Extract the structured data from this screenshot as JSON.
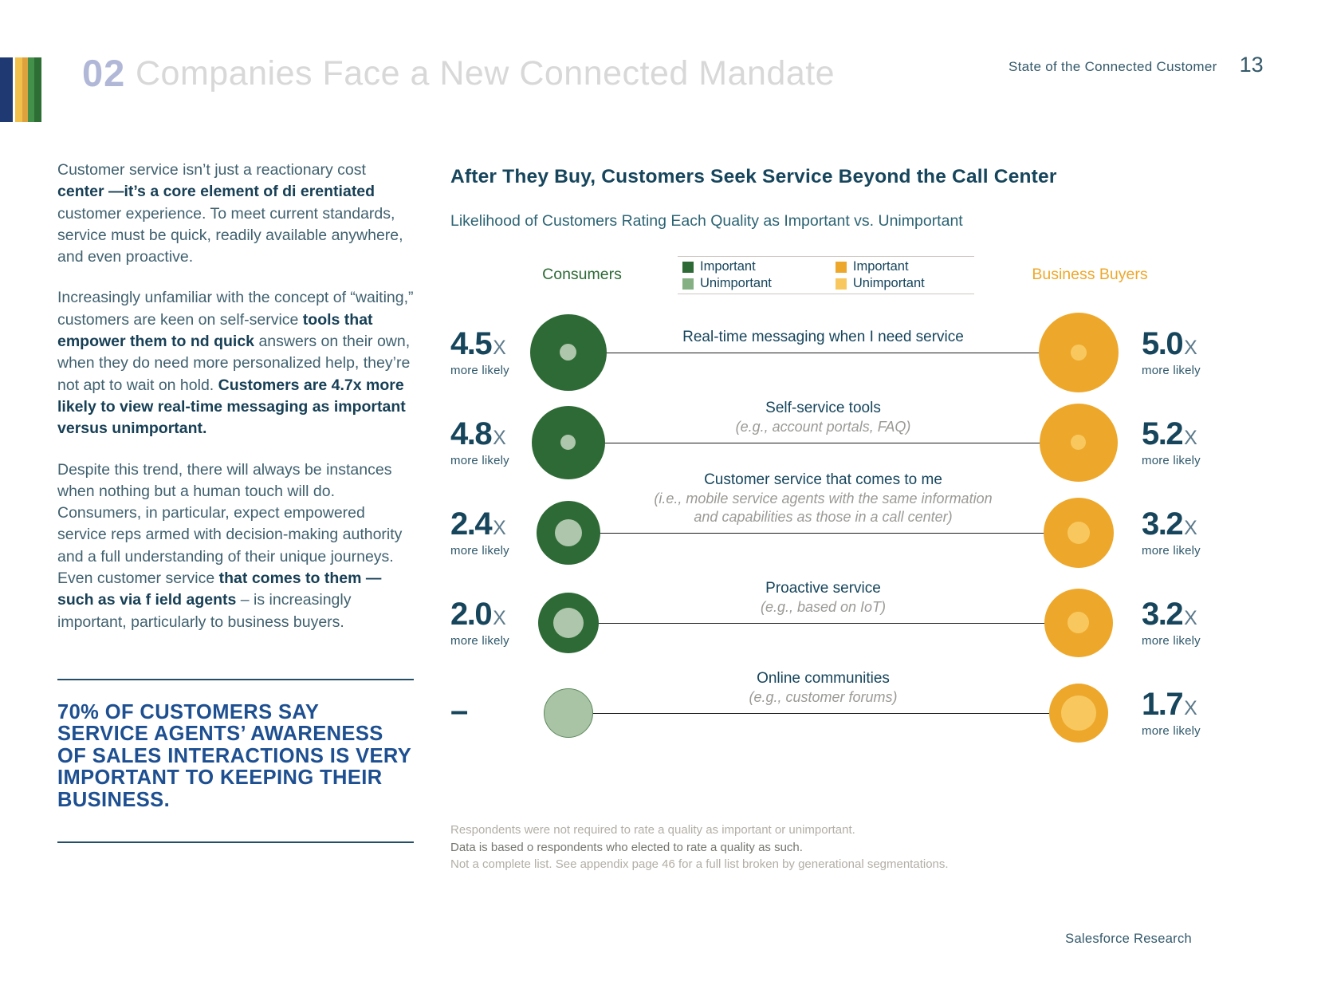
{
  "header": {
    "section_number": "02",
    "title": "Companies Face a New Connected Mandate",
    "report_name": "State of the Connected Customer",
    "page_number": "13",
    "stripe_colors": [
      "#1f3a73",
      "#f2c14b",
      "#dda23d",
      "#43904a",
      "#2d6e35"
    ]
  },
  "left_column": {
    "paragraphs": [
      [
        {
          "t": "Customer service isn’t just a reactionary cost ",
          "b": false
        },
        {
          "t": "center —it’s a core element of di erentiated ",
          "b": true
        },
        {
          "t": "customer experience. To meet current standards, service must be quick, readily available anywhere, and even proactive.",
          "b": false
        }
      ],
      [
        {
          "t": "Increasingly unfamiliar with the concept of “waiting,” customers are keen on self-service ",
          "b": false
        },
        {
          "t": "tools that empower them to  nd quick ",
          "b": true
        },
        {
          "t": "answers on their own, when they do need more personalized help, they’re not apt to wait on hold. ",
          "b": false
        },
        {
          "t": "Customers are 4.7x more likely to view real-time messaging as important versus unimportant.",
          "b": true
        }
      ],
      [
        {
          "t": "Despite this trend, there will always be instances when nothing but a human touch will do. Consumers, in particular, expect empowered service reps armed with decision-making authority and a full understanding of their unique journeys. Even customer service ",
          "b": false
        },
        {
          "t": "that comes to them —such as via f ield agents",
          "b": true
        },
        {
          "t": " – is increasingly important, particularly to business buyers.",
          "b": false
        }
      ]
    ],
    "callout": "70% OF CUSTOMERS SAY SERVICE AGENTS’ AWARENESS OF SALES INTERACTIONS IS VERY IMPORTANT TO KEEPING THEIR BUSINESS."
  },
  "chart": {
    "title": "After They Buy, Customers Seek Service Beyond the Call Center",
    "subtitle": "Likelihood of Customers Rating Each Quality as Important vs. Unimportant",
    "legend": {
      "consumers_label": "Consumers",
      "business_label": "Business Buyers",
      "groups": [
        {
          "items": [
            {
              "label": "Important",
              "color": "#2d6a35"
            },
            {
              "label": "Unimportant",
              "color": "#84b083"
            }
          ]
        },
        {
          "items": [
            {
              "label": "Important",
              "color": "#eda82c"
            },
            {
              "label": "Unimportant",
              "color": "#f8c85f"
            }
          ]
        }
      ]
    },
    "rows": [
      {
        "left": {
          "value": "4.5",
          "x": "X",
          "sub": "more likely",
          "circle": {
            "d": 96,
            "color": "#2d6a35",
            "inner_d": 21,
            "inner_color": "#aec6ab"
          }
        },
        "label": "Real-time messaging when I need service",
        "sub1": "",
        "sub2": "",
        "right": {
          "value": "5.0",
          "x": "X",
          "sub": "more likely",
          "circle": {
            "d": 100,
            "color": "#eda82c",
            "inner_d": 20,
            "inner_color": "#f8c85f"
          }
        }
      },
      {
        "left": {
          "value": "4.8",
          "x": "X",
          "sub": "more likely",
          "circle": {
            "d": 92,
            "color": "#2d6a35",
            "inner_d": 19,
            "inner_color": "#aec6ab"
          }
        },
        "label": "Self-service tools",
        "sub1": "(e.g., account portals, FAQ)",
        "sub2": "",
        "right": {
          "value": "5.2",
          "x": "X",
          "sub": "more likely",
          "circle": {
            "d": 98,
            "color": "#eda82c",
            "inner_d": 19,
            "inner_color": "#f8c85f"
          }
        }
      },
      {
        "left": {
          "value": "2.4",
          "x": "X",
          "sub": "more likely",
          "circle": {
            "d": 80,
            "color": "#2d6a35",
            "inner_d": 34,
            "inner_color": "#aec6ab"
          }
        },
        "label": "Customer service that comes to me",
        "sub1": "(i.e., mobile service agents with the same information",
        "sub2": "and capabilities as those in a call center)",
        "right": {
          "value": "3.2",
          "x": "X",
          "sub": "more likely",
          "circle": {
            "d": 88,
            "color": "#eda82c",
            "inner_d": 28,
            "inner_color": "#f8c85f"
          }
        }
      },
      {
        "left": {
          "value": "2.0",
          "x": "X",
          "sub": "more likely",
          "circle": {
            "d": 76,
            "color": "#2d6a35",
            "inner_d": 38,
            "inner_color": "#aec6ab"
          }
        },
        "label": "Proactive service",
        "sub1": "(e.g., based on IoT)",
        "sub2": "",
        "right": {
          "value": "3.2",
          "x": "X",
          "sub": "more likely",
          "circle": {
            "d": 86,
            "color": "#eda82c",
            "inner_d": 27,
            "inner_color": "#f8c85f"
          }
        }
      },
      {
        "left": {
          "value": "–",
          "x": "",
          "sub": "",
          "circle": {
            "d": 62,
            "color": "#a9c4a4",
            "inner_d": 0,
            "inner_color": "",
            "border": "#5d8a5e"
          }
        },
        "label": "Online communities",
        "sub1": "(e.g., customer forums)",
        "sub2": "",
        "right": {
          "value": "1.7",
          "x": "X",
          "sub": "more likely",
          "circle": {
            "d": 74,
            "color": "#eda82c",
            "inner_d": 44,
            "inner_color": "#f8c85f"
          }
        }
      }
    ],
    "footnotes": [
      "Respondents were not required to rate a quality as important or unimportant.",
      "Data is based o  respondents who elected to rate a quality as such.",
      "Not a complete list. See appendix page 46 for a full list broken by generational segmentations."
    ]
  },
  "chart_data": {
    "type": "bubble",
    "title": "After They Buy, Customers Seek Service Beyond the Call Center",
    "subtitle": "Likelihood of Customers Rating Each Quality as Important vs. Unimportant",
    "categories": [
      "Real-time messaging when I need service",
      "Self-service tools (e.g., account portals, FAQ)",
      "Customer service that comes to me (i.e., mobile service agents with the same information and capabilities as those in a call center)",
      "Proactive service (e.g., based on IoT)",
      "Online communities (e.g., customer forums)"
    ],
    "series": [
      {
        "name": "Consumers",
        "values": [
          4.5,
          4.8,
          2.4,
          2.0,
          null
        ],
        "value_labels": [
          "4.5x more likely",
          "4.8x more likely",
          "2.4x more likely",
          "2.0x more likely",
          "–"
        ]
      },
      {
        "name": "Business Buyers",
        "values": [
          5.0,
          5.2,
          3.2,
          3.2,
          1.7
        ],
        "value_labels": [
          "5.0x more likely",
          "5.2x more likely",
          "3.2x more likely",
          "3.2x more likely",
          "1.7x more likely"
        ]
      }
    ],
    "legend_position": "top-center"
  },
  "footer": {
    "credit": "Salesforce Research"
  }
}
